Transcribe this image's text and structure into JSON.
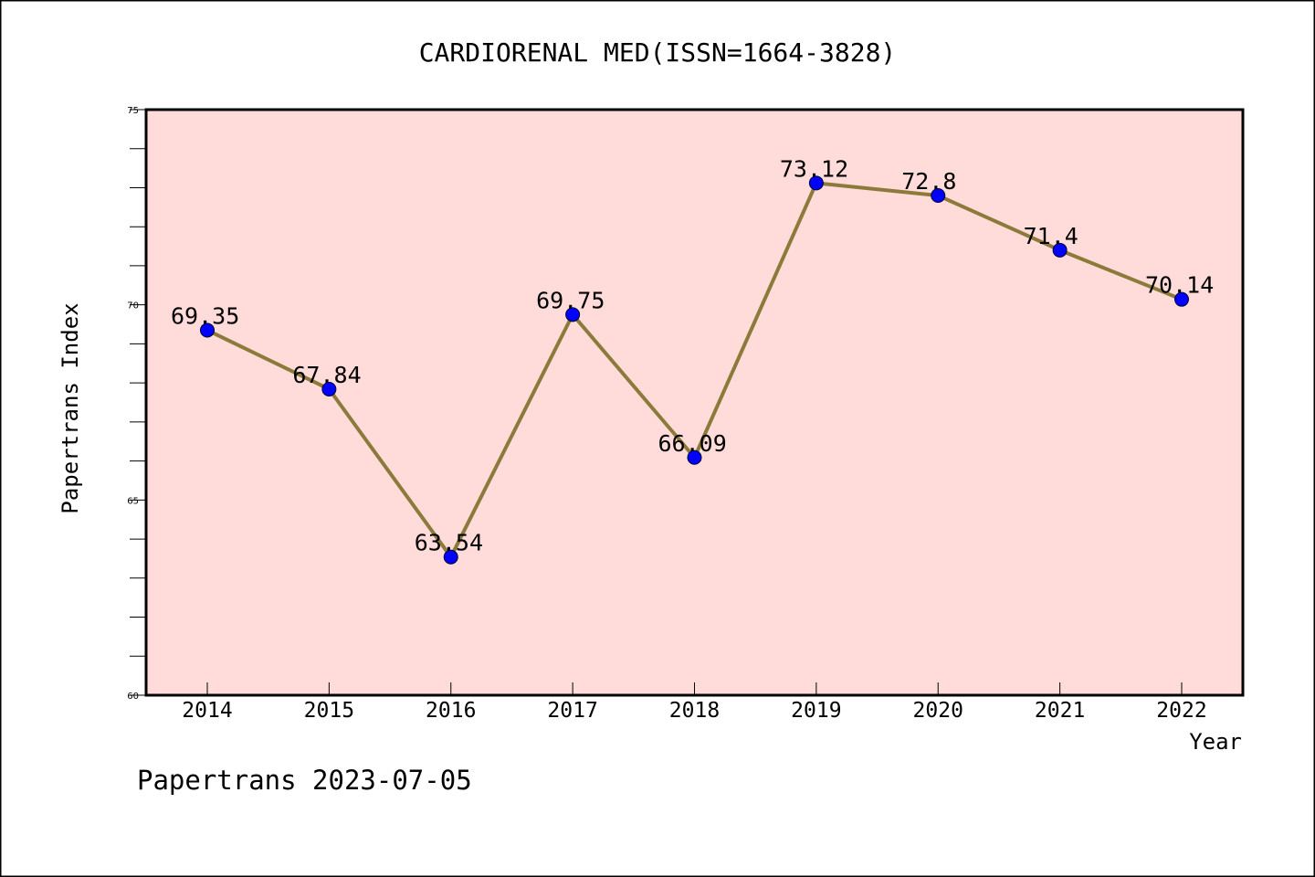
{
  "chart_data": {
    "type": "line",
    "title": "CARDIORENAL MED(ISSN=1664-3828)",
    "xlabel": "Year",
    "ylabel": "Papertrans Index",
    "x": [
      "2014",
      "2015",
      "2016",
      "2017",
      "2018",
      "2019",
      "2020",
      "2021",
      "2022"
    ],
    "series": [
      {
        "values": [
          69.35,
          67.84,
          63.54,
          69.75,
          66.09,
          73.12,
          72.8,
          71.4,
          70.14
        ],
        "data_labels": [
          "69.35",
          "67.84",
          "63.54",
          "69.75",
          "66.09",
          "73.12",
          "72.8",
          "71.4",
          "70.14"
        ],
        "line_color": "#8b7a3a",
        "marker_color": "#0000ff"
      }
    ],
    "ylim": [
      60,
      75
    ],
    "y_ticks": [
      "60",
      "65",
      "70",
      "75"
    ],
    "grid": false,
    "legend": "none",
    "plot_background": "#ffdcd9"
  },
  "footer": {
    "text": "Papertrans 2023-07-05"
  }
}
